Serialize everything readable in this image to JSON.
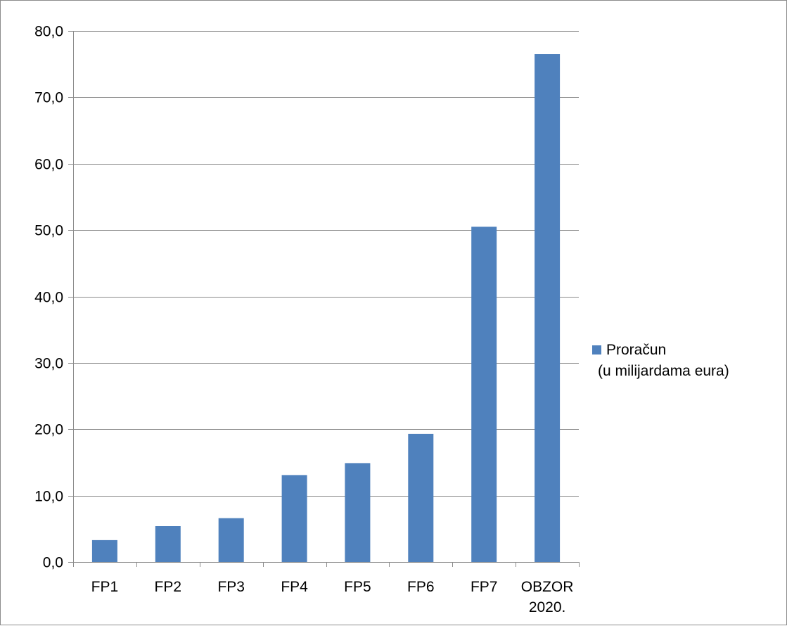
{
  "chart_data": {
    "type": "bar",
    "categories": [
      "FP1",
      "FP2",
      "FP3",
      "FP4",
      "FP5",
      "FP6",
      "FP7",
      "OBZOR\n2020."
    ],
    "series": [
      {
        "name": "Proračun\n(u milijardama eura)",
        "values": [
          3.3,
          5.4,
          6.6,
          13.1,
          14.9,
          19.3,
          50.5,
          76.5
        ],
        "color": "#4f81bd"
      }
    ],
    "title": "",
    "xlabel": "",
    "ylabel": "",
    "ylim": [
      0,
      80
    ],
    "y_ticks": [
      "0,0",
      "10,0",
      "20,0",
      "30,0",
      "40,0",
      "50,0",
      "60,0",
      "70,0",
      "80,0"
    ],
    "grid": true,
    "legend_position": "right",
    "colors": {
      "bar": "#4f81bd",
      "grid": "#8c8c8c",
      "axis": "#8c8c8c",
      "text": "#000000"
    }
  }
}
